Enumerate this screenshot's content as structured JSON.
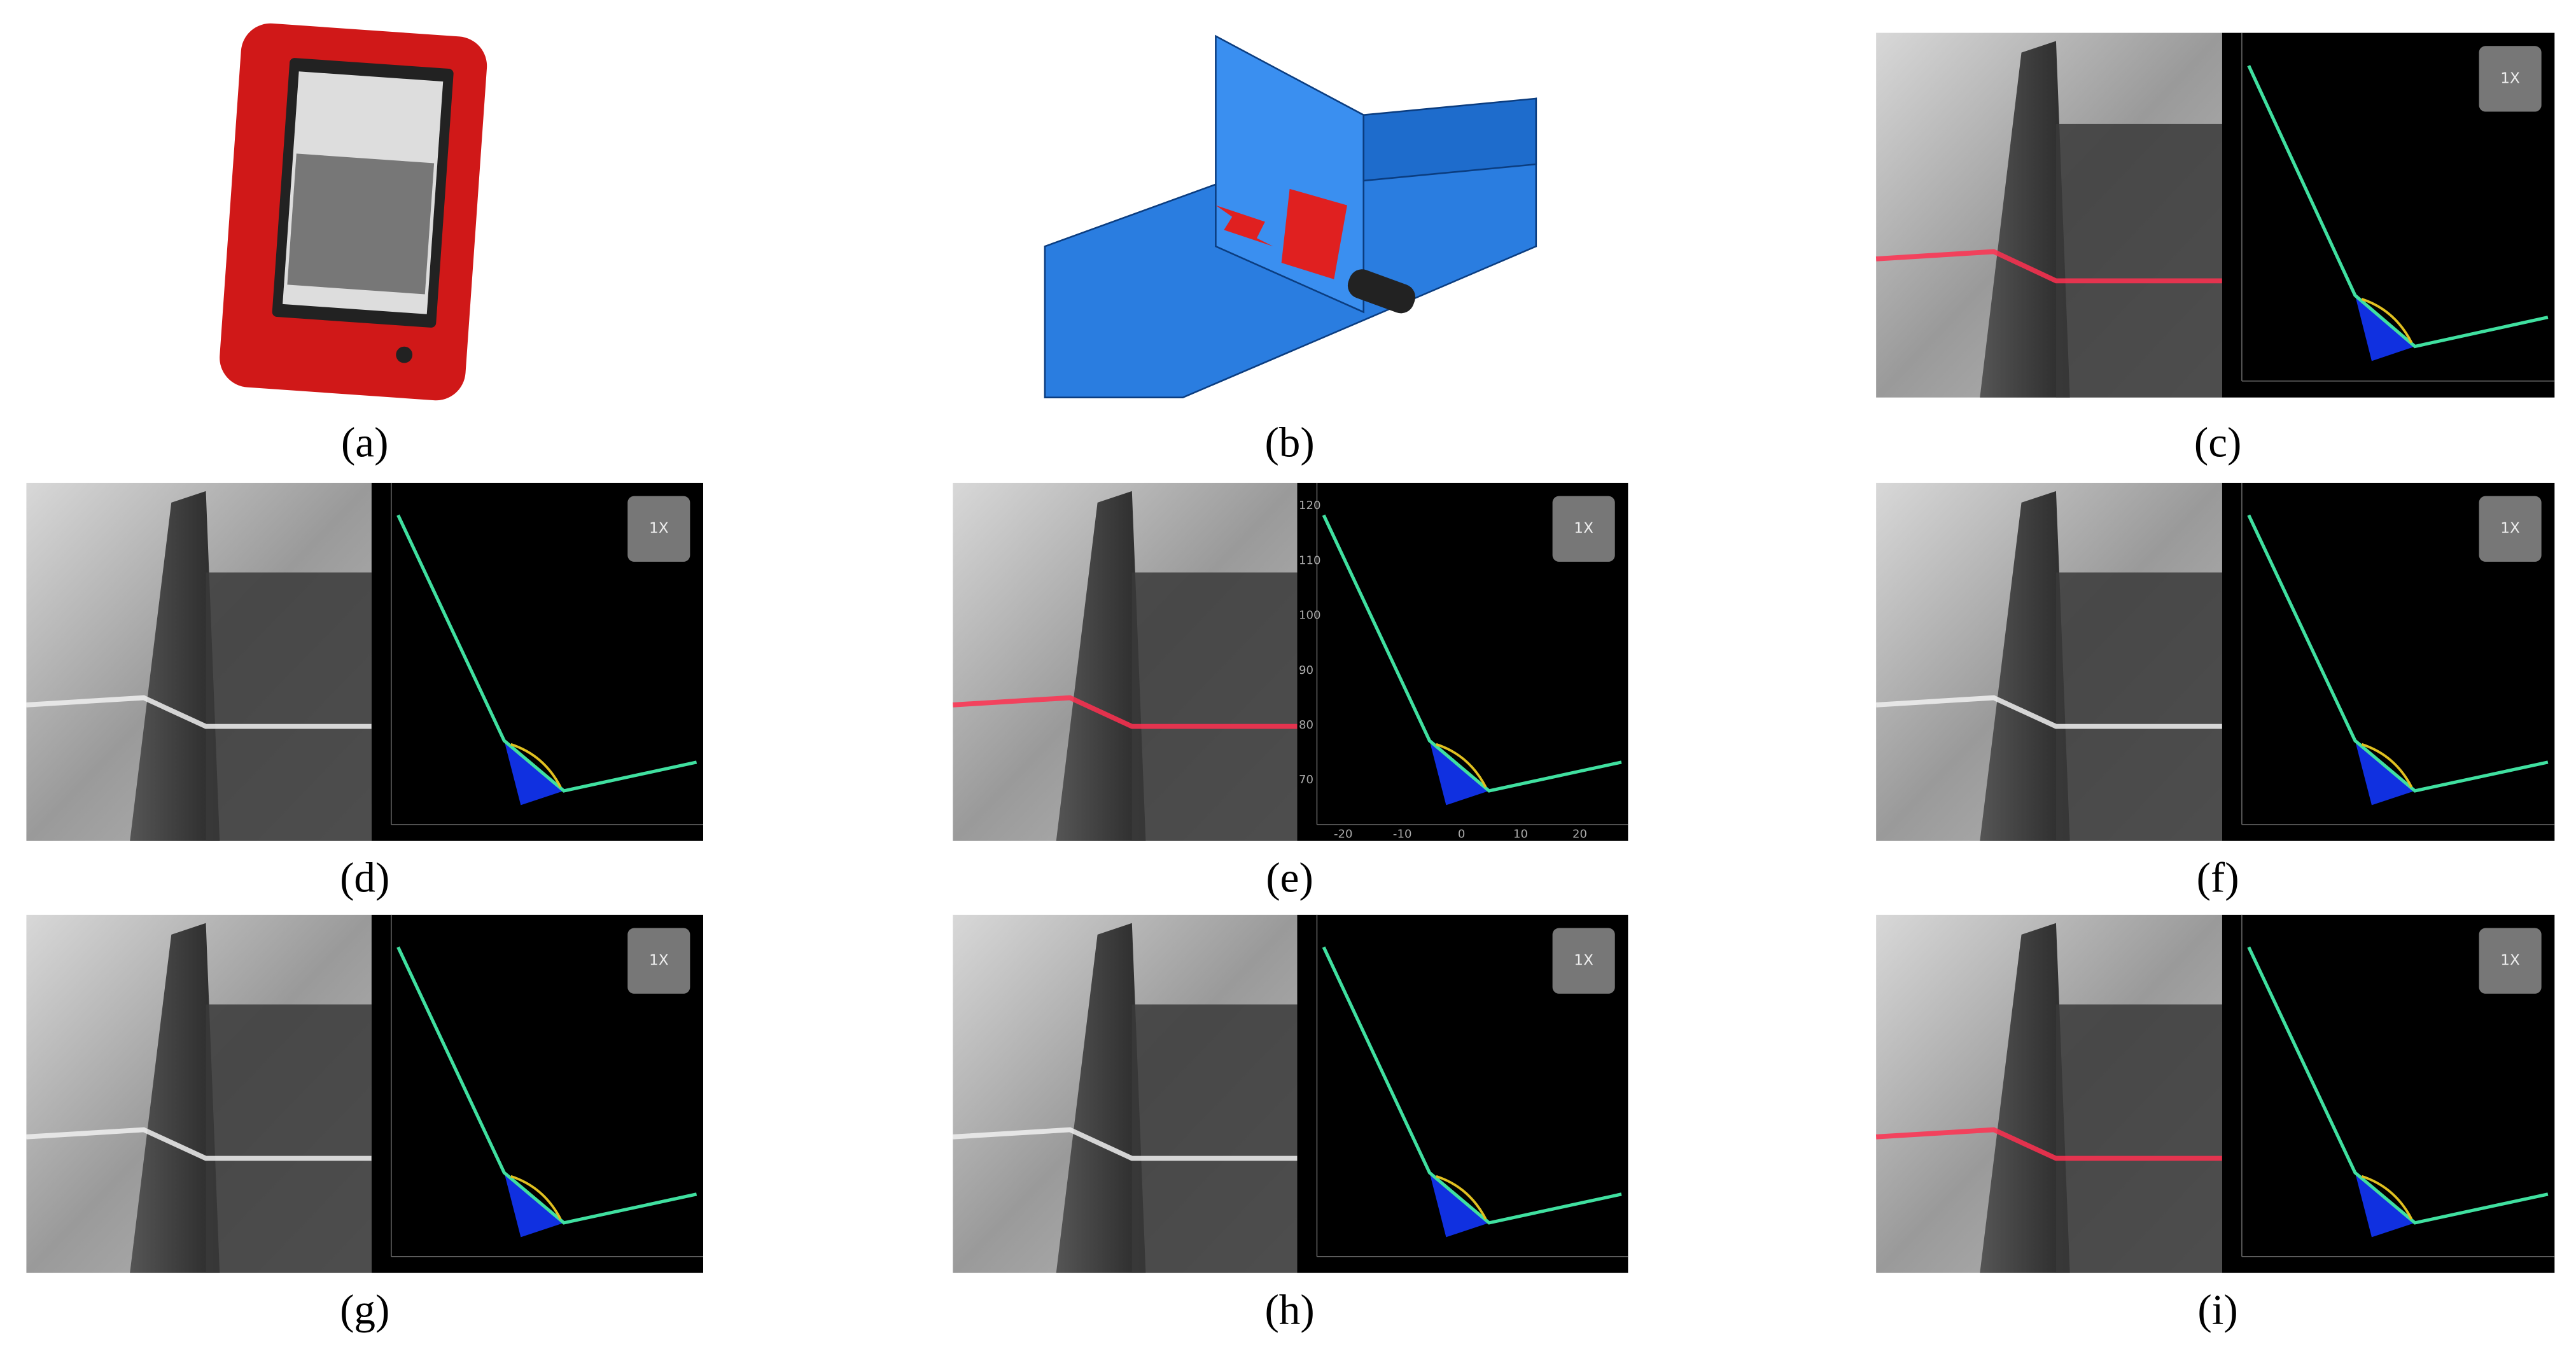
{
  "panels": [
    {
      "caption": "(a)"
    },
    {
      "caption": "(b)"
    },
    {
      "caption": "(c)",
      "badge": "1X"
    },
    {
      "caption": "(d)",
      "badge": "1X"
    },
    {
      "caption": "(e)",
      "badge": "1X",
      "y_ticks": [
        120,
        110,
        100,
        90,
        80,
        70
      ],
      "x_ticks": [
        -20,
        -10,
        0,
        10,
        20
      ]
    },
    {
      "caption": "(f)",
      "badge": "1X"
    },
    {
      "caption": "(g)",
      "badge": "1X"
    },
    {
      "caption": "(h)",
      "badge": "1X"
    },
    {
      "caption": "(i)",
      "badge": "1X"
    }
  ]
}
